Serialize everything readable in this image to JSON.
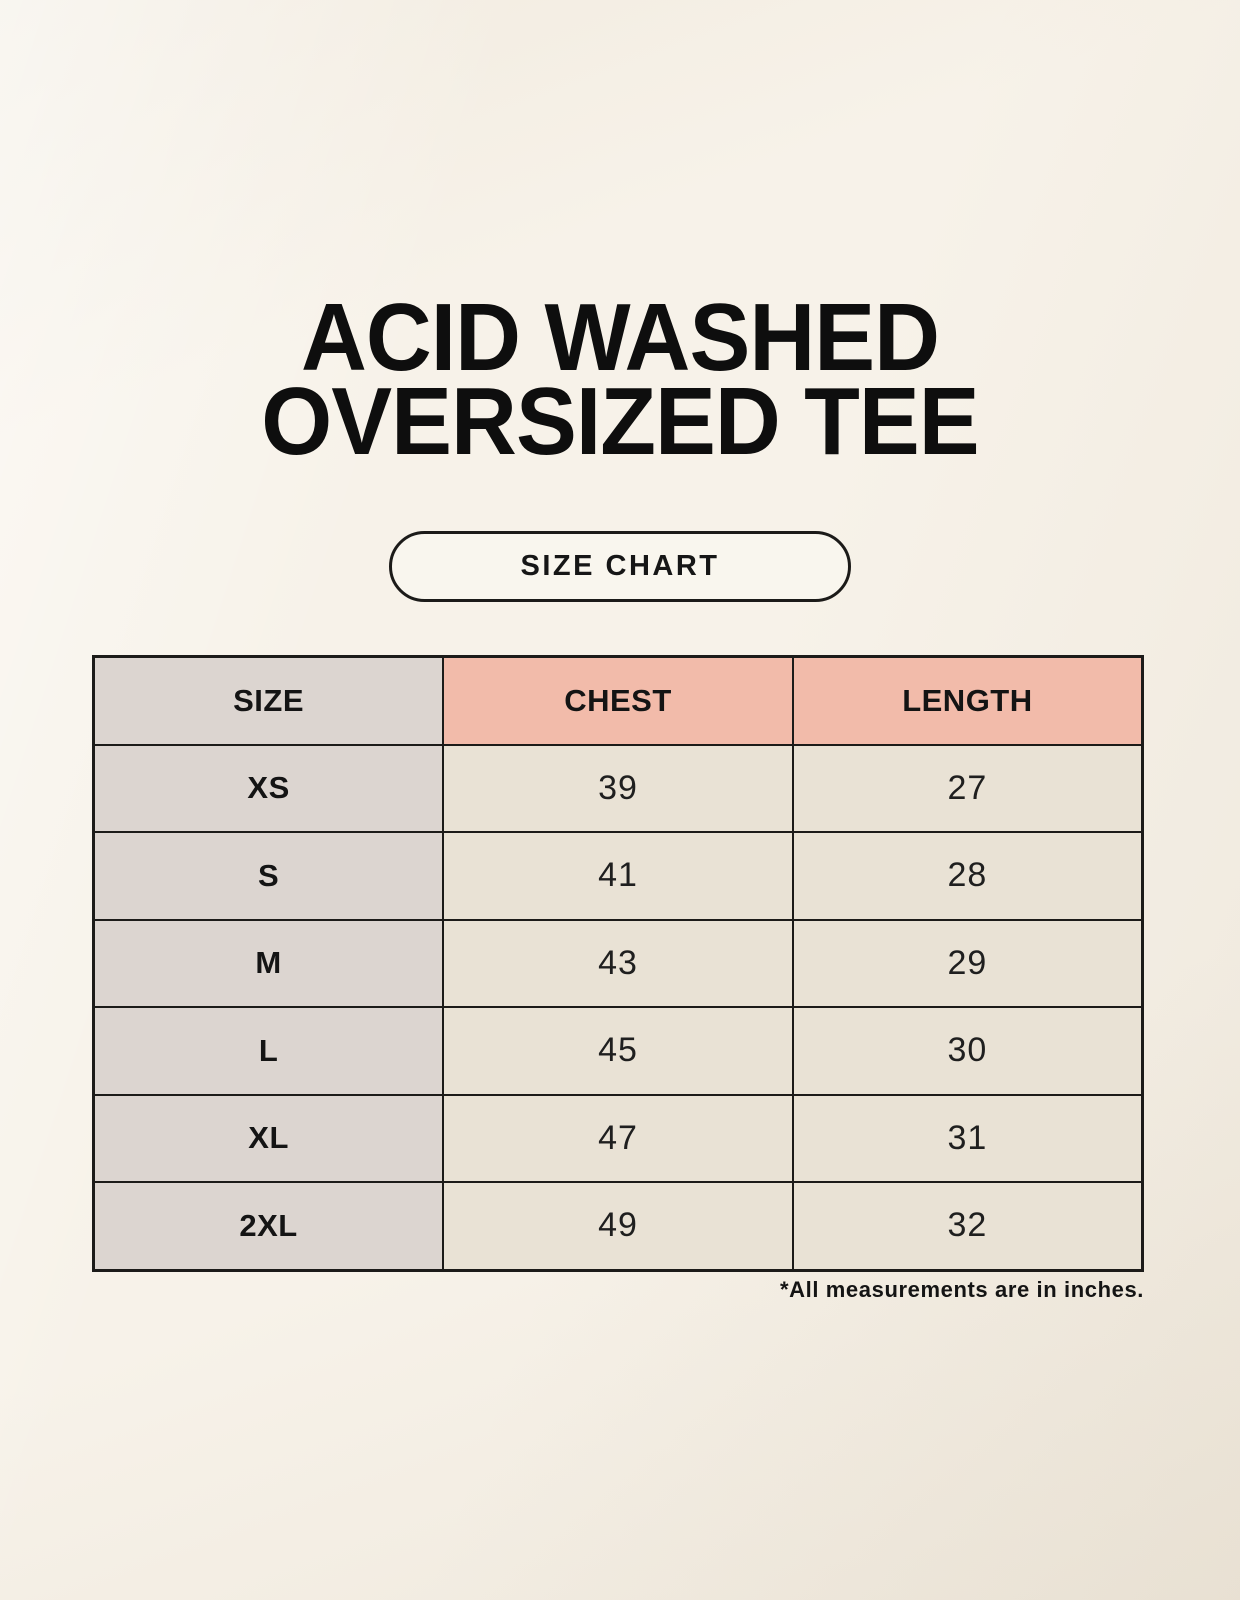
{
  "header": {
    "title_line1": "ACID WASHED",
    "title_line2": "OVERSIZED TEE",
    "button_label": "SIZE CHART"
  },
  "footnote": "*All measurements are in inches.",
  "colors": {
    "page_bg": "#f7f2e9",
    "size_col_bg": "#dcd5d0",
    "accent_header_bg": "#f2bbaa",
    "data_cell_bg": "#e9e2d5",
    "border": "#1c1b19",
    "text": "#141414"
  },
  "chart_data": {
    "type": "table",
    "title": "ACID WASHED OVERSIZED TEE",
    "subtitle": "SIZE CHART",
    "columns": [
      "SIZE",
      "CHEST",
      "LENGTH"
    ],
    "rows": [
      [
        "XS",
        39,
        27
      ],
      [
        "S",
        41,
        28
      ],
      [
        "M",
        43,
        29
      ],
      [
        "L",
        45,
        30
      ],
      [
        "XL",
        47,
        31
      ],
      [
        "2XL",
        49,
        32
      ]
    ],
    "units": "inches",
    "note": "*All measurements are in inches."
  }
}
